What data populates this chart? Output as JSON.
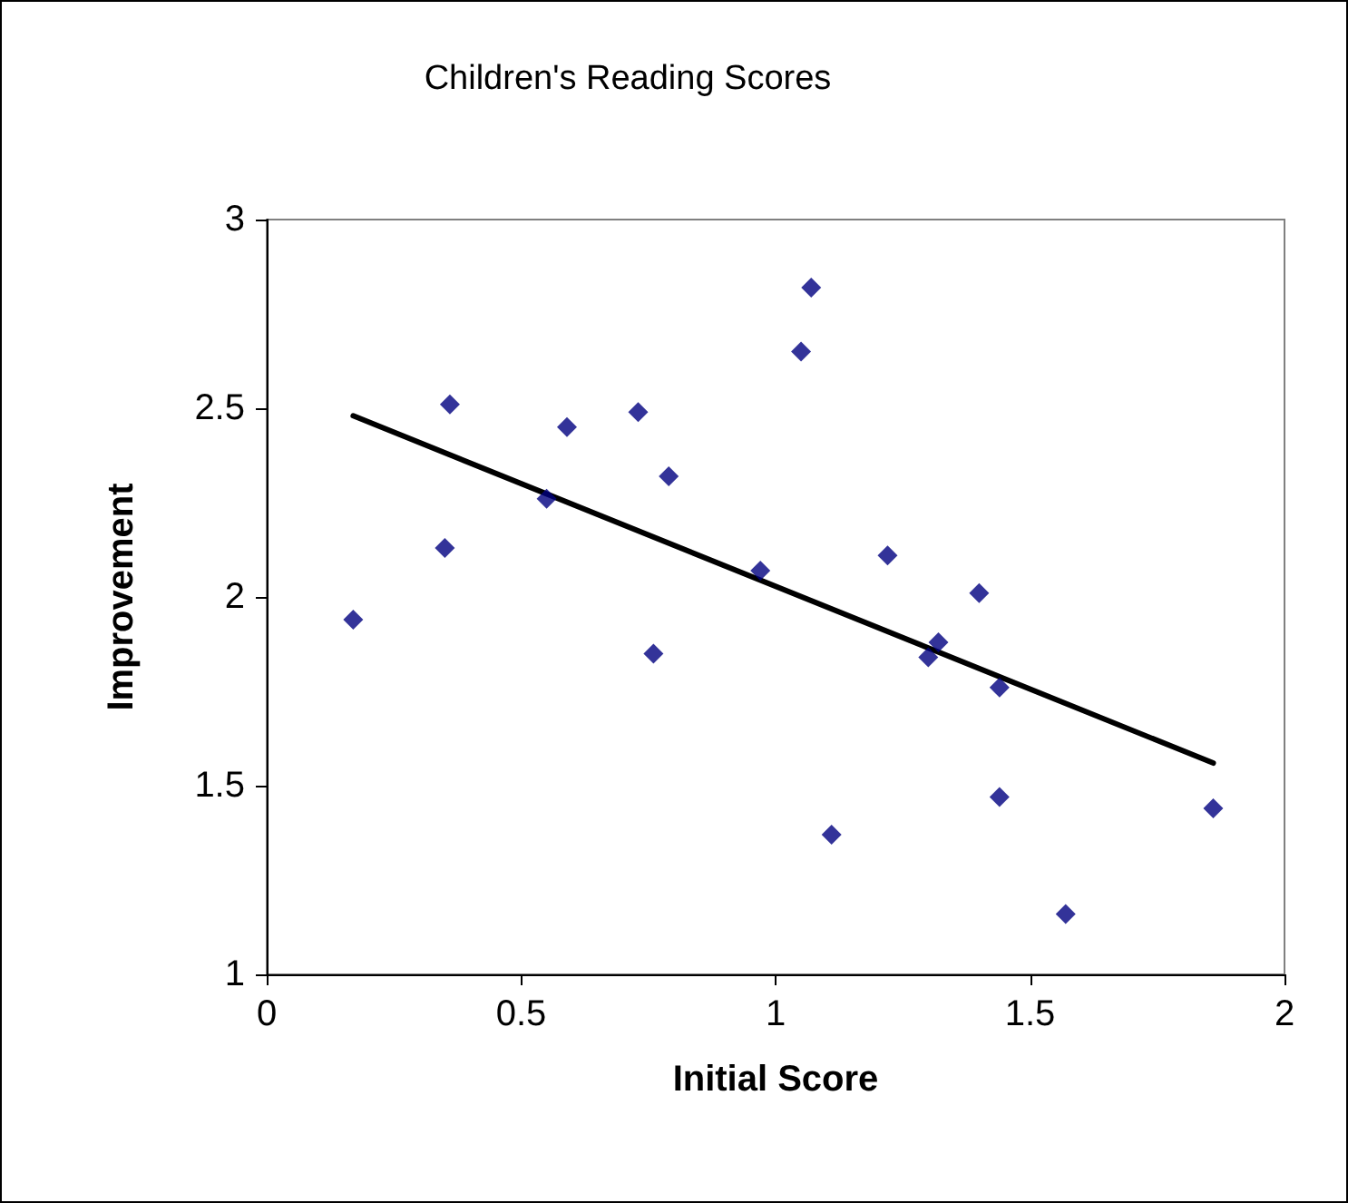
{
  "chart_data": {
    "type": "scatter",
    "title": "Children's Reading Scores",
    "xlabel": "Initial Score",
    "ylabel": "Improvement",
    "xlim": [
      0,
      2
    ],
    "xticks": [
      0,
      0.5,
      1,
      1.5,
      2
    ],
    "ylim": [
      1,
      3
    ],
    "yticks": [
      1,
      1.5,
      2,
      2.5,
      3
    ],
    "grid": false,
    "marker": "diamond",
    "series": [
      {
        "color": "#000080",
        "x": [
          0.17,
          0.35,
          0.36,
          0.55,
          0.59,
          0.73,
          0.76,
          0.79,
          0.97,
          1.07,
          1.05,
          1.22,
          1.4,
          1.32,
          1.3,
          1.44,
          1.44,
          1.11,
          1.57,
          1.86
        ],
        "values": [
          1.94,
          2.13,
          2.51,
          2.26,
          2.45,
          2.49,
          1.85,
          2.32,
          2.07,
          2.82,
          2.65,
          2.11,
          2.01,
          1.88,
          1.84,
          1.76,
          1.47,
          1.37,
          1.16,
          1.44
        ]
      },
      {
        "type": "line",
        "color": "#000000",
        "marker": "none",
        "x": [
          0.17,
          1.86
        ],
        "values": [
          2.48,
          1.56
        ]
      }
    ]
  }
}
